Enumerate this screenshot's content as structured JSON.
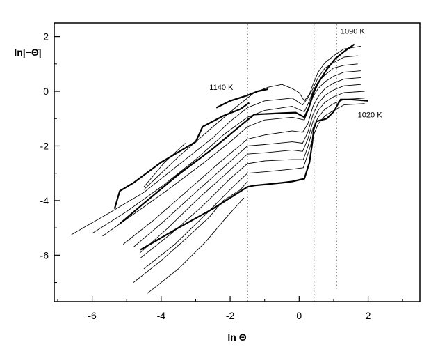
{
  "chart_data": {
    "type": "line",
    "title": "",
    "xlabel": "ln Θ",
    "ylabel": "ln|−Θ̇|",
    "xlim": [
      -7.1,
      3.5
    ],
    "ylim": [
      -7.7,
      2.5
    ],
    "xticks": [
      -6,
      -4,
      -2,
      0,
      2
    ],
    "yticks": [
      2,
      0,
      -2,
      -4,
      -6
    ],
    "xtick_labels": [
      "-6",
      "-4",
      "-2",
      "0",
      "2"
    ],
    "ytick_labels": [
      "2",
      "0",
      "-2",
      "-4",
      "-6"
    ],
    "grid": false,
    "vlines": [
      -1.5,
      0.43,
      1.08
    ],
    "annotations": [
      {
        "text": "1090 K",
        "x": 1.2,
        "y": 2.1
      },
      {
        "text": "1140 K",
        "x": -2.6,
        "y": 0.05
      },
      {
        "text": "1020 K",
        "x": 1.7,
        "y": -0.95
      }
    ],
    "series": [
      {
        "bold": true,
        "points": [
          [
            -5.35,
            -4.3
          ],
          [
            -5.2,
            -3.65
          ],
          [
            -4.8,
            -3.35
          ],
          [
            -4.0,
            -2.6
          ],
          [
            -3.0,
            -1.85
          ],
          [
            -2.8,
            -1.3
          ],
          [
            -2.2,
            -0.9
          ],
          [
            -1.7,
            -0.65
          ],
          [
            -1.45,
            -0.42
          ]
        ]
      },
      {
        "bold": true,
        "points": [
          [
            -2.4,
            -0.6
          ],
          [
            -2.0,
            -0.35
          ],
          [
            -1.5,
            -0.15
          ],
          [
            -1.2,
            0.0
          ],
          [
            -0.9,
            0.08
          ]
        ]
      },
      {
        "bold": false,
        "points": [
          [
            -4.5,
            -3.6
          ],
          [
            -3.5,
            -2.4
          ],
          [
            -2.5,
            -1.3
          ],
          [
            -1.8,
            -0.55
          ],
          [
            -1.3,
            -0.05
          ],
          [
            -0.9,
            0.15
          ],
          [
            -0.5,
            0.25
          ],
          [
            -0.2,
            0.1
          ],
          [
            0.0,
            -0.05
          ],
          [
            0.15,
            -0.35
          ],
          [
            0.3,
            -0.1
          ],
          [
            0.4,
            0.25
          ],
          [
            0.55,
            0.7
          ],
          [
            0.75,
            1.05
          ],
          [
            1.0,
            1.3
          ],
          [
            1.3,
            1.55
          ],
          [
            1.8,
            1.65
          ]
        ]
      },
      {
        "bold": false,
        "points": [
          [
            -6.6,
            -5.25
          ],
          [
            -5.5,
            -4.45
          ],
          [
            -4.5,
            -3.7
          ],
          [
            -3.5,
            -2.7
          ],
          [
            -2.5,
            -1.7
          ],
          [
            -2.0,
            -1.1
          ],
          [
            -1.5,
            -0.6
          ],
          [
            -1.0,
            -0.35
          ],
          [
            -0.2,
            -0.25
          ],
          [
            0.1,
            -0.5
          ],
          [
            0.25,
            -0.25
          ],
          [
            0.4,
            0.1
          ],
          [
            0.55,
            0.5
          ],
          [
            0.75,
            0.85
          ],
          [
            1.0,
            1.05
          ],
          [
            1.3,
            1.25
          ],
          [
            1.7,
            1.3
          ]
        ]
      },
      {
        "bold": false,
        "points": [
          [
            -6.0,
            -5.2
          ],
          [
            -5.0,
            -4.4
          ],
          [
            -4.0,
            -3.5
          ],
          [
            -3.0,
            -2.5
          ],
          [
            -2.2,
            -1.6
          ],
          [
            -1.5,
            -0.95
          ],
          [
            -1.0,
            -0.7
          ],
          [
            -0.2,
            -0.55
          ],
          [
            0.15,
            -0.75
          ],
          [
            0.28,
            -0.4
          ],
          [
            0.4,
            0.0
          ],
          [
            0.55,
            0.35
          ],
          [
            0.75,
            0.6
          ],
          [
            1.0,
            0.85
          ],
          [
            1.3,
            0.95
          ],
          [
            1.7,
            1.0
          ]
        ]
      },
      {
        "bold": false,
        "points": [
          [
            -5.7,
            -5.3
          ],
          [
            -4.8,
            -4.5
          ],
          [
            -3.8,
            -3.6
          ],
          [
            -2.8,
            -2.65
          ],
          [
            -2.0,
            -1.85
          ],
          [
            -1.5,
            -1.3
          ],
          [
            -1.0,
            -1.05
          ],
          [
            -0.2,
            -0.95
          ],
          [
            0.15,
            -1.05
          ],
          [
            0.28,
            -0.65
          ],
          [
            0.4,
            -0.2
          ],
          [
            0.55,
            0.1
          ],
          [
            0.75,
            0.35
          ],
          [
            1.0,
            0.55
          ],
          [
            1.3,
            0.7
          ],
          [
            1.8,
            0.75
          ]
        ]
      },
      {
        "bold": true,
        "points": [
          [
            -5.2,
            -4.85
          ],
          [
            -4.5,
            -4.1
          ],
          [
            -3.5,
            -3.05
          ],
          [
            -2.5,
            -2.1
          ],
          [
            -1.5,
            -1.05
          ],
          [
            -1.3,
            -0.85
          ],
          [
            -0.5,
            -0.8
          ],
          [
            -0.1,
            -0.78
          ],
          [
            0.15,
            -0.95
          ],
          [
            0.28,
            -0.6
          ],
          [
            0.4,
            -0.1
          ],
          [
            0.55,
            0.3
          ],
          [
            0.8,
            0.8
          ],
          [
            1.05,
            1.2
          ],
          [
            1.3,
            1.45
          ],
          [
            1.6,
            1.72
          ]
        ]
      },
      {
        "bold": false,
        "points": [
          [
            -5.1,
            -5.6
          ],
          [
            -4.2,
            -4.7
          ],
          [
            -3.2,
            -3.6
          ],
          [
            -2.3,
            -2.6
          ],
          [
            -1.5,
            -1.75
          ],
          [
            -1.0,
            -1.6
          ],
          [
            -0.2,
            -1.45
          ],
          [
            0.1,
            -1.5
          ],
          [
            0.25,
            -1.2
          ],
          [
            0.4,
            -0.55
          ],
          [
            0.55,
            -0.2
          ],
          [
            0.75,
            0.1
          ],
          [
            1.0,
            0.3
          ],
          [
            1.3,
            0.45
          ],
          [
            1.8,
            0.5
          ]
        ]
      },
      {
        "bold": false,
        "points": [
          [
            -4.8,
            -5.7
          ],
          [
            -4.0,
            -4.85
          ],
          [
            -3.0,
            -3.7
          ],
          [
            -2.2,
            -2.8
          ],
          [
            -1.5,
            -2.0
          ],
          [
            -1.0,
            -1.95
          ],
          [
            -0.2,
            -1.85
          ],
          [
            0.1,
            -1.9
          ],
          [
            0.25,
            -1.5
          ],
          [
            0.4,
            -0.85
          ],
          [
            0.55,
            -0.45
          ],
          [
            0.75,
            -0.15
          ],
          [
            1.0,
            0.05
          ],
          [
            1.3,
            0.2
          ],
          [
            1.8,
            0.25
          ]
        ]
      },
      {
        "bold": false,
        "points": [
          [
            -4.6,
            -5.9
          ],
          [
            -3.8,
            -5.0
          ],
          [
            -2.9,
            -3.9
          ],
          [
            -2.1,
            -3.0
          ],
          [
            -1.5,
            -2.3
          ],
          [
            -1.0,
            -2.25
          ],
          [
            -0.2,
            -2.15
          ],
          [
            0.1,
            -2.2
          ],
          [
            0.25,
            -1.75
          ],
          [
            0.4,
            -1.1
          ],
          [
            0.55,
            -0.7
          ],
          [
            0.75,
            -0.4
          ],
          [
            1.0,
            -0.2
          ],
          [
            1.3,
            -0.05
          ],
          [
            1.9,
            0.0
          ]
        ]
      },
      {
        "bold": false,
        "points": [
          [
            -4.6,
            -6.1
          ],
          [
            -3.7,
            -5.2
          ],
          [
            -2.8,
            -4.2
          ],
          [
            -2.0,
            -3.2
          ],
          [
            -1.5,
            -2.65
          ],
          [
            -1.0,
            -2.55
          ],
          [
            -0.2,
            -2.5
          ],
          [
            0.12,
            -2.5
          ],
          [
            0.26,
            -2.0
          ],
          [
            0.4,
            -1.35
          ],
          [
            0.55,
            -0.95
          ],
          [
            0.75,
            -0.65
          ],
          [
            1.0,
            -0.45
          ],
          [
            1.3,
            -0.3
          ],
          [
            1.9,
            -0.25
          ]
        ]
      },
      {
        "bold": false,
        "points": [
          [
            -4.5,
            -6.5
          ],
          [
            -3.6,
            -5.6
          ],
          [
            -2.7,
            -4.5
          ],
          [
            -2.0,
            -3.6
          ],
          [
            -1.5,
            -3.0
          ],
          [
            -1.0,
            -2.95
          ],
          [
            -0.2,
            -2.85
          ],
          [
            0.12,
            -2.8
          ],
          [
            0.28,
            -2.2
          ],
          [
            0.42,
            -1.6
          ],
          [
            0.55,
            -1.2
          ],
          [
            0.75,
            -0.9
          ],
          [
            1.0,
            -0.7
          ],
          [
            1.3,
            -0.5
          ],
          [
            1.9,
            -0.45
          ]
        ]
      },
      {
        "bold": true,
        "points": [
          [
            -4.6,
            -5.8
          ],
          [
            -3.5,
            -5.0
          ],
          [
            -2.5,
            -4.3
          ],
          [
            -1.5,
            -3.5
          ],
          [
            -1.3,
            -3.45
          ],
          [
            -0.5,
            -3.35
          ],
          [
            -0.2,
            -3.3
          ],
          [
            0.15,
            -3.2
          ],
          [
            0.3,
            -2.6
          ],
          [
            0.38,
            -1.9
          ],
          [
            0.42,
            -1.4
          ],
          [
            0.5,
            -1.1
          ],
          [
            0.8,
            -1.0
          ],
          [
            1.0,
            -0.75
          ],
          [
            1.2,
            -0.3
          ],
          [
            1.5,
            -0.3
          ],
          [
            2.0,
            -0.35
          ]
        ]
      },
      {
        "bold": false,
        "points": [
          [
            -4.8,
            -7.0
          ],
          [
            -4.0,
            -6.2
          ],
          [
            -3.2,
            -5.3
          ],
          [
            -2.6,
            -4.6
          ],
          [
            -2.2,
            -4.0
          ],
          [
            -1.7,
            -3.6
          ],
          [
            -1.5,
            -3.3
          ]
        ]
      },
      {
        "bold": false,
        "points": [
          [
            -4.4,
            -7.4
          ],
          [
            -3.5,
            -6.5
          ],
          [
            -2.7,
            -5.5
          ],
          [
            -2.1,
            -4.6
          ],
          [
            -1.6,
            -3.9
          ]
        ]
      },
      {
        "bold": false,
        "points": [
          [
            -4.5,
            -3.5
          ],
          [
            -3.9,
            -2.6
          ],
          [
            -3.3,
            -1.9
          ]
        ]
      }
    ]
  }
}
